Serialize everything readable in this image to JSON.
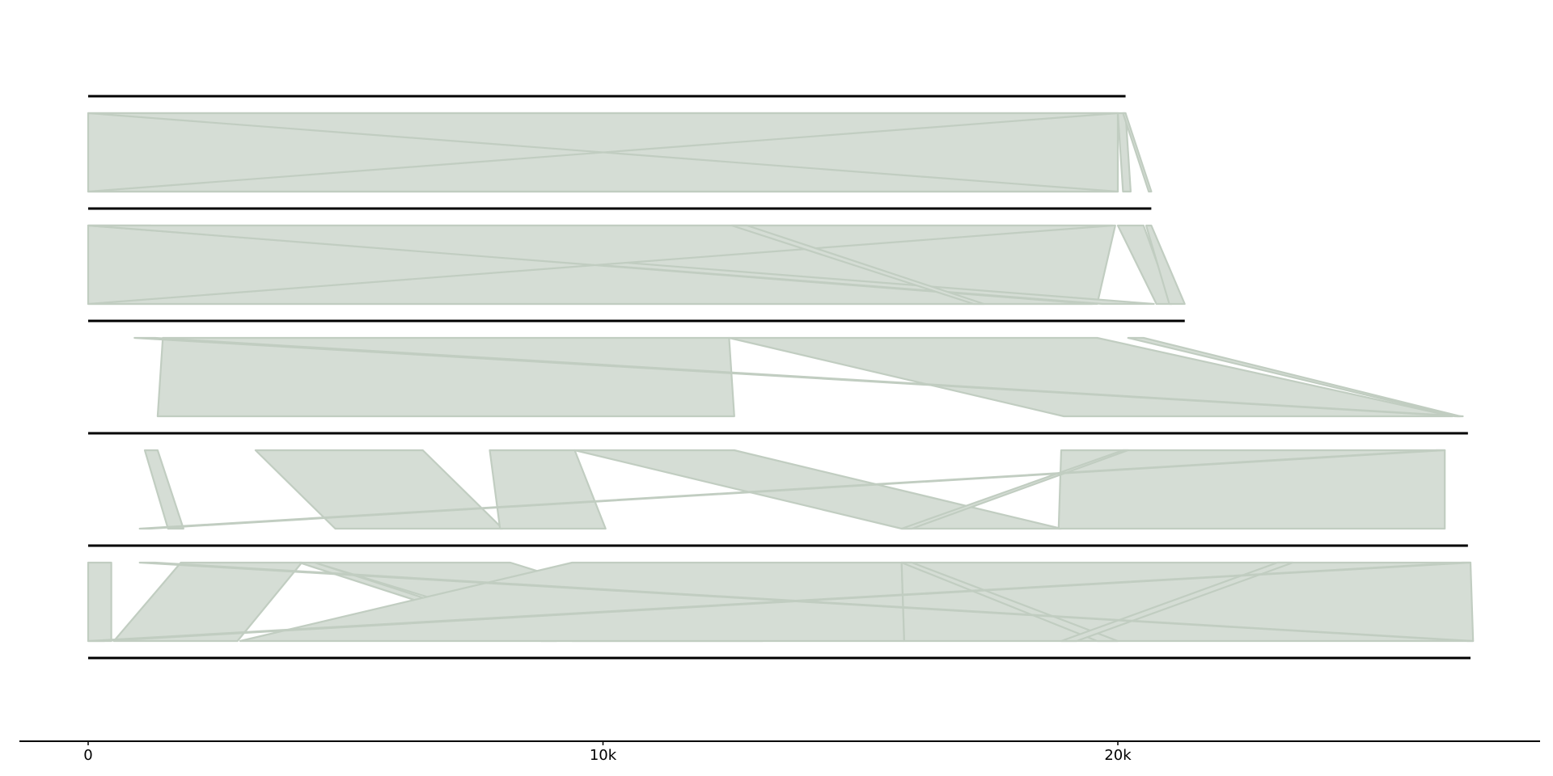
{
  "chart_data": {
    "type": "synteny",
    "title": "",
    "xlabel": "",
    "ylabel": "",
    "xlim": [
      -1350,
      28200
    ],
    "x_ticks": [
      {
        "value": 0,
        "label": "0"
      },
      {
        "value": 10000,
        "label": "10k"
      },
      {
        "value": 20000,
        "label": "20k"
      }
    ],
    "sequences": [
      {
        "start": 0,
        "end": 20150
      },
      {
        "start": 0,
        "end": 20650
      },
      {
        "start": 0,
        "end": 21300
      },
      {
        "start": 0,
        "end": 26800
      },
      {
        "start": 0,
        "end": 26800
      },
      {
        "start": 0,
        "end": 26850
      }
    ],
    "colors": {
      "link_fill": "#d5ddd5",
      "link_stroke": "#c1cdc1",
      "sequence": "#000000"
    },
    "links": [
      {
        "pair": 0,
        "top": [
          0,
          20000
        ],
        "bottom": [
          0,
          20000
        ]
      },
      {
        "pair": 0,
        "top": [
          0,
          20000
        ],
        "bottom": [
          20000,
          0
        ]
      },
      {
        "pair": 0,
        "top": [
          20000,
          20150
        ],
        "bottom": [
          20100,
          20250
        ]
      },
      {
        "pair": 0,
        "top": [
          20100,
          20150
        ],
        "bottom": [
          20600,
          20650
        ]
      },
      {
        "pair": 1,
        "top": [
          0,
          19950
        ],
        "bottom": [
          0,
          19600
        ]
      },
      {
        "pair": 1,
        "top": [
          0,
          1200
        ],
        "bottom": [
          19700,
          20700
        ]
      },
      {
        "pair": 1,
        "top": [
          19900,
          0
        ],
        "bottom": [
          0,
          19500
        ]
      },
      {
        "pair": 1,
        "top": [
          12500,
          12800
        ],
        "bottom": [
          17200,
          17400
        ]
      },
      {
        "pair": 1,
        "top": [
          20000,
          20500
        ],
        "bottom": [
          20750,
          21050
        ]
      },
      {
        "pair": 1,
        "top": [
          20550,
          20650
        ],
        "bottom": [
          21000,
          21300
        ]
      },
      {
        "pair": 2,
        "top": [
          1450,
          12450
        ],
        "bottom": [
          1350,
          12550
        ]
      },
      {
        "pair": 2,
        "top": [
          12450,
          19600
        ],
        "bottom": [
          18950,
          26500
        ]
      },
      {
        "pair": 2,
        "top": [
          20200,
          20500
        ],
        "bottom": [
          26550,
          26650
        ]
      },
      {
        "pair": 2,
        "top": [
          900,
          1300
        ],
        "bottom": [
          26600,
          26700
        ]
      },
      {
        "pair": 3,
        "top": [
          1100,
          1350
        ],
        "bottom": [
          1550,
          1850
        ]
      },
      {
        "pair": 3,
        "top": [
          3250,
          6500
        ],
        "bottom": [
          4800,
          8050
        ]
      },
      {
        "pair": 3,
        "top": [
          7800,
          9450
        ],
        "bottom": [
          8000,
          10050
        ]
      },
      {
        "pair": 3,
        "top": [
          9450,
          12550
        ],
        "bottom": [
          15800,
          18900
        ]
      },
      {
        "pair": 3,
        "top": [
          18900,
          26350
        ],
        "bottom": [
          18850,
          26350
        ]
      },
      {
        "pair": 3,
        "top": [
          20100,
          20200
        ],
        "bottom": [
          15800,
          16000
        ]
      },
      {
        "pair": 3,
        "top": [
          26200,
          26350
        ],
        "bottom": [
          1000,
          1200
        ]
      },
      {
        "pair": 4,
        "top": [
          0,
          450
        ],
        "bottom": [
          0,
          450
        ]
      },
      {
        "pair": 4,
        "top": [
          1800,
          4150
        ],
        "bottom": [
          500,
          2900
        ]
      },
      {
        "pair": 4,
        "top": [
          4100,
          4400
        ],
        "bottom": [
          8800,
          9100
        ]
      },
      {
        "pair": 4,
        "top": [
          4400,
          8200
        ],
        "bottom": [
          9400,
          13100
        ]
      },
      {
        "pair": 4,
        "top": [
          9400,
          15800
        ],
        "bottom": [
          2950,
          15850
        ]
      },
      {
        "pair": 4,
        "top": [
          15800,
          26850
        ],
        "bottom": [
          15850,
          26900
        ]
      },
      {
        "pair": 4,
        "top": [
          15800,
          16000
        ],
        "bottom": [
          19600,
          20000
        ]
      },
      {
        "pair": 4,
        "top": [
          23100,
          23400
        ],
        "bottom": [
          18900,
          19200
        ]
      },
      {
        "pair": 4,
        "top": [
          1000,
          1300
        ],
        "bottom": [
          26800,
          26900
        ]
      },
      {
        "pair": 4,
        "top": [
          26700,
          26850
        ],
        "bottom": [
          0,
          300
        ]
      }
    ]
  }
}
